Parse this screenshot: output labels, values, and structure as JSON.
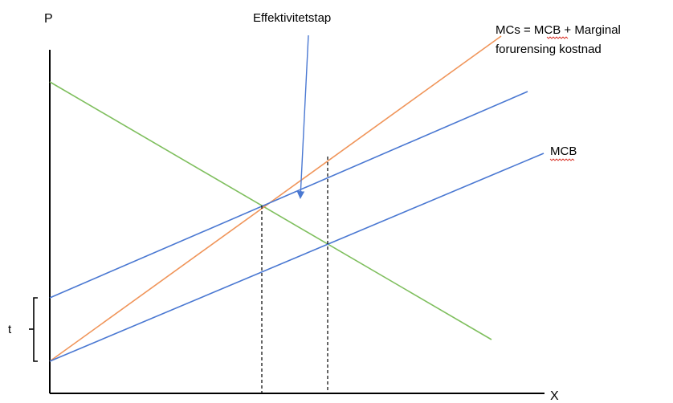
{
  "axes": {
    "y_label": "P",
    "x_label": "X"
  },
  "labels": {
    "deadweight_loss": "Effektivitetstap",
    "mcs_line1": "MCs = MCB + Marginal",
    "mcs_line2": "forurensing kostnad",
    "mcb": "MCB",
    "tax": "t"
  },
  "colors": {
    "mcb": "#4a78d2",
    "mcs": "#f0955a",
    "demand": "#7fbf5e",
    "axis": "#000000",
    "annotation_arrow": "#4a78d2",
    "spellcheck_underline": "#d93025"
  }
}
